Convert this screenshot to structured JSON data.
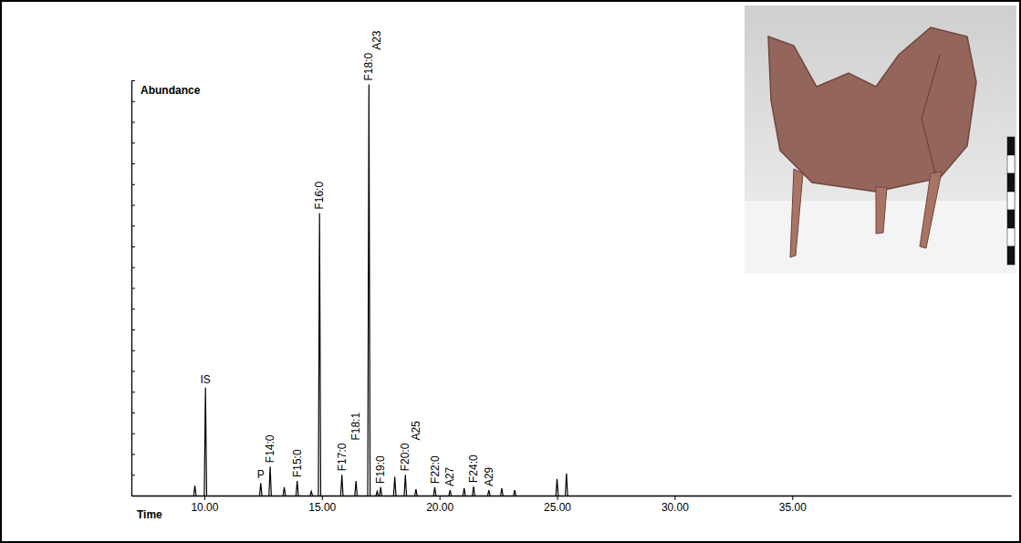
{
  "chart_data": {
    "type": "peaks",
    "x_label": "Time",
    "y_label": "Abundance",
    "x": [
      9.6,
      10.05,
      12.4,
      12.8,
      13.4,
      13.95,
      14.55,
      14.9,
      15.85,
      16.45,
      17.0,
      17.35,
      17.5,
      18.1,
      18.55,
      19.0,
      19.8,
      20.45,
      21.05,
      21.45,
      22.1,
      22.65,
      23.2,
      25.0,
      25.4
    ],
    "values": [
      2.4,
      26,
      3,
      7,
      2,
      3.5,
      1,
      68,
      5,
      3.5,
      99,
      1,
      2,
      4.5,
      5,
      1.5,
      2,
      1.3,
      1.8,
      2.2,
      1.3,
      1.8,
      1.3,
      4,
      5.3
    ],
    "labels": [
      null,
      "IS",
      "P",
      "F14:0",
      null,
      "F15:0",
      null,
      "F16:0",
      "F17:0",
      "F18:1",
      "F18:0",
      "A23",
      "F19:0",
      null,
      "F20:0",
      "A25",
      "F22:0",
      "A27",
      null,
      "F24:0",
      "A29",
      null,
      null,
      null,
      null
    ],
    "color": "#000000",
    "xlim": [
      6.9,
      44.3
    ],
    "ylim": [
      0,
      100
    ],
    "xticks": [
      {
        "value": 10,
        "label": "10.00"
      },
      {
        "value": 15,
        "label": "15.00"
      },
      {
        "value": 20,
        "label": "20.00"
      },
      {
        "value": 25,
        "label": "25.00"
      },
      {
        "value": 30,
        "label": "30.00"
      },
      {
        "value": 35,
        "label": "35.00"
      }
    ],
    "yticks": [
      0,
      5,
      10,
      15,
      20,
      25,
      30,
      35,
      40,
      45,
      50,
      55,
      60,
      65,
      70,
      75,
      80,
      85,
      90,
      95,
      100
    ],
    "tick_labels": "x"
  }
}
